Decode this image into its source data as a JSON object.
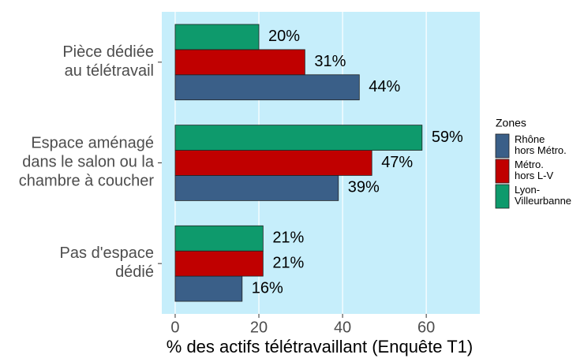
{
  "chart_data": {
    "type": "bar",
    "orientation": "horizontal",
    "x_label": "% des actifs télétravaillant (Enquête T1)",
    "categories": [
      "Pièce dédiée\nau télétravail",
      "Espace aménagé\ndans le salon ou la\nchambre à coucher",
      "Pas d'espace\ndédié"
    ],
    "legend_title": "Zones",
    "series": [
      {
        "name": "Rhône\nhors Métro.",
        "color": "#3a5f88",
        "values": [
          44,
          39,
          16
        ],
        "value_labels": [
          "44%",
          "39%",
          "16%"
        ]
      },
      {
        "name": "Métro.\nhors L-V",
        "color": "#c00000",
        "values": [
          31,
          47,
          21
        ],
        "value_labels": [
          "31%",
          "47%",
          "21%"
        ]
      },
      {
        "name": "Lyon-\nVilleurbanne",
        "color": "#0e9a6c",
        "values": [
          20,
          59,
          21
        ],
        "value_labels": [
          "20%",
          "59%",
          "21%"
        ]
      }
    ],
    "xlim": [
      -3.2,
      72.8
    ],
    "xticks": [
      0,
      20,
      40,
      60
    ],
    "grid": true,
    "legend": "right"
  }
}
